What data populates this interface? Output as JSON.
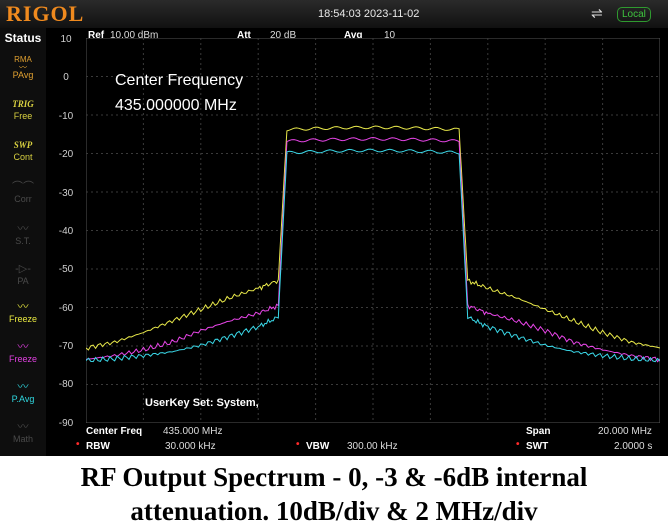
{
  "header": {
    "logo": "RIGOL",
    "datetime": "18:54:03 2023-11-02",
    "usb_icon": "usb-icon",
    "remote_status": "Local"
  },
  "sidebar": {
    "title": "Status",
    "items": [
      {
        "icon": "RMA\nPAvg",
        "label": "PAvg",
        "color": "#e0a030"
      },
      {
        "icon": "TRIG",
        "label": "Free",
        "color": "#d8d040"
      },
      {
        "icon": "SWP",
        "label": "Cont",
        "color": "#d8d040"
      },
      {
        "icon": "correction-icon",
        "label": "Corr",
        "color": "#4a4a4a"
      },
      {
        "icon": "source-tracking-icon",
        "label": "S.T.",
        "color": "#4a4a4a"
      },
      {
        "icon": "preamp-icon",
        "label": "PA",
        "color": "#4a4a4a"
      },
      {
        "icon": "trace-freeze-icon",
        "label": "Freeze",
        "color": "#e8e840"
      },
      {
        "icon": "trace-freeze-icon",
        "label": "Freeze",
        "color": "#e040e0"
      },
      {
        "icon": "trace-power-avg-icon",
        "label": "P.Avg",
        "color": "#30d8e0"
      },
      {
        "icon": "trace-math-icon",
        "label": "Math",
        "color": "#4a4a4a"
      }
    ]
  },
  "measure_header": {
    "ref_label": "Ref",
    "ref_value": "10.00 dBm",
    "att_label": "Att",
    "att_value": "20 dB",
    "avg_label": "Avg",
    "avg_value": "10"
  },
  "annotation": {
    "line1": "Center Frequency",
    "line2": "435.000000 MHz"
  },
  "userkey_text": "UserKey Set:   System,",
  "footer": {
    "center_freq_label": "Center Freq",
    "center_freq_value": "435.000 MHz",
    "span_label": "Span",
    "span_value": "20.000 MHz",
    "rbw_label": "RBW",
    "rbw_value": "30.000 kHz",
    "vbw_label": "VBW",
    "vbw_value": "300.00 kHz",
    "swt_label": "SWT",
    "swt_value": "2.0000 s"
  },
  "caption": {
    "line1": "RF Output Spectrum - 0, -3 & -6dB internal",
    "line2": "attenuation.   10dB/div & 2 MHz/div"
  },
  "chart_data": {
    "type": "line",
    "xlabel": "",
    "ylabel": "",
    "x_unit": "MHz",
    "y_unit": "dBm",
    "xlim": [
      425,
      445
    ],
    "ylim": [
      -90,
      10
    ],
    "y_ticks": [
      "10",
      "0",
      "-10",
      "-20",
      "-30",
      "-40",
      "-50",
      "-60",
      "-70",
      "-80",
      "-90"
    ],
    "grid": true,
    "x": [
      425.0,
      426.0,
      427.0,
      428.0,
      429.0,
      430.0,
      431.0,
      431.7,
      432.0,
      433.0,
      434.0,
      435.0,
      436.0,
      437.0,
      438.0,
      438.3,
      439.0,
      440.0,
      441.0,
      442.0,
      443.0,
      444.0,
      445.0
    ],
    "series": [
      {
        "color": "#e8e84a",
        "values": [
          -70.5,
          -69.0,
          -66.5,
          -63.5,
          -60.5,
          -57.5,
          -55.0,
          -53.0,
          -13.8,
          -13.5,
          -13.3,
          -13.2,
          -13.3,
          -13.5,
          -13.8,
          -53.0,
          -55.0,
          -57.5,
          -60.5,
          -63.5,
          -66.5,
          -69.0,
          -70.5
        ]
      },
      {
        "color": "#e845e8",
        "values": [
          -73.5,
          -72.5,
          -71.0,
          -69.0,
          -66.0,
          -63.5,
          -61.5,
          -59.5,
          -16.8,
          -16.5,
          -16.3,
          -16.2,
          -16.3,
          -16.5,
          -16.8,
          -59.5,
          -61.5,
          -63.5,
          -66.0,
          -69.0,
          -71.0,
          -72.5,
          -73.5
        ]
      },
      {
        "color": "#3ad8e8",
        "values": [
          -73.8,
          -73.3,
          -72.5,
          -71.5,
          -69.8,
          -67.5,
          -65.0,
          -62.5,
          -19.8,
          -19.5,
          -19.3,
          -19.2,
          -19.3,
          -19.5,
          -19.8,
          -62.5,
          -65.0,
          -67.5,
          -69.8,
          -71.5,
          -72.5,
          -73.3,
          -73.8
        ]
      }
    ]
  }
}
